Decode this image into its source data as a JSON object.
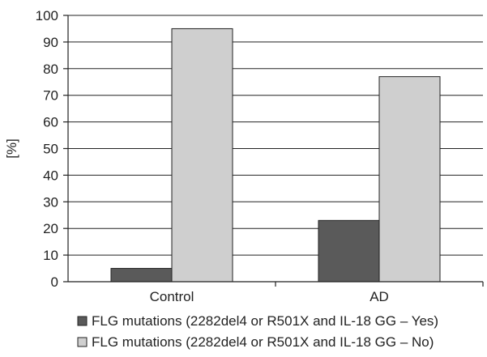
{
  "chart_data": {
    "type": "bar",
    "title": "",
    "xlabel": "",
    "ylabel": "[%]",
    "categories": [
      "Control",
      "AD"
    ],
    "series": [
      {
        "name": "FLG mutations (2282del4 or R501X and IL-18 GG – Yes)",
        "values": [
          5,
          23
        ],
        "color": "#5a5a5a"
      },
      {
        "name": "FLG mutations (2282del4 or R501X and IL-18 GG – No)",
        "values": [
          95,
          77
        ],
        "color": "#cfcfcf"
      }
    ],
    "ylim": [
      0,
      100
    ],
    "yticks": [
      0,
      10,
      20,
      30,
      40,
      50,
      60,
      70,
      80,
      90,
      100
    ],
    "grid": true,
    "legend_position": "bottom"
  }
}
